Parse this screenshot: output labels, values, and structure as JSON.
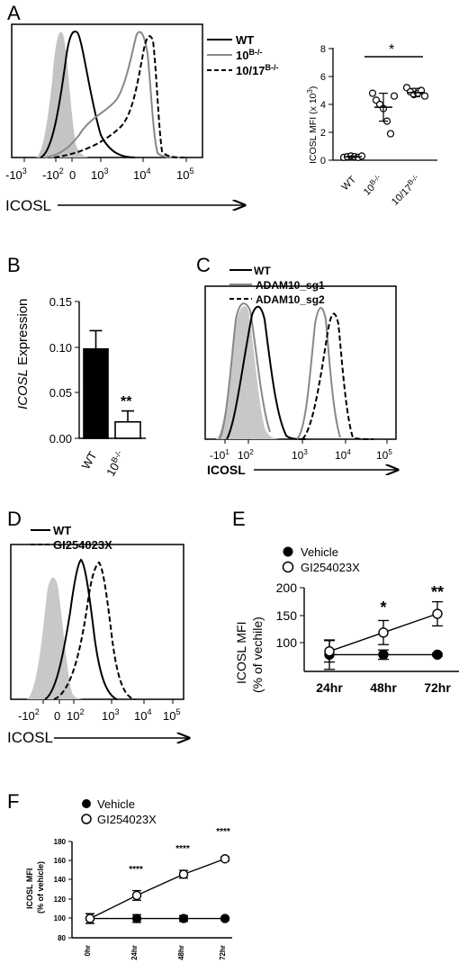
{
  "figure": {
    "panels": {
      "A": {
        "letter": "A",
        "axis_label": "ICOSL",
        "legend": [
          "WT",
          "10",
          "10/17"
        ],
        "legend_sup": [
          "",
          "B-/-",
          "B-/-"
        ],
        "ticks": [
          "-10",
          "-10",
          "0",
          "10",
          "10",
          "10"
        ],
        "tick_exp": [
          "3",
          "2",
          "",
          "3",
          "4",
          "5"
        ]
      },
      "A2": {
        "ylabel": "ICOSL MFI (x 10",
        "ylabel_sup": "3",
        "ylabel_end": ")",
        "yticks": [
          "0",
          "2",
          "4",
          "6",
          "8"
        ],
        "xcats": [
          "WT",
          "10",
          "10/17"
        ],
        "xcats_sup": [
          "",
          "B-/-",
          "B-/-"
        ],
        "sig": "*"
      },
      "B": {
        "letter": "B",
        "ylabel_italic": "ICOSL",
        "ylabel_rest": " Expression",
        "yticks": [
          "0.00",
          "0.05",
          "0.10",
          "0.15"
        ],
        "xcats": [
          "WT",
          "10"
        ],
        "xcats_sup": [
          "",
          "B-/-"
        ],
        "sig": "**"
      },
      "C": {
        "letter": "C",
        "axis_label": "ICOSL",
        "legend": [
          "WT",
          "ADAM10_sg1",
          "ADAM10_sg2"
        ],
        "ticks": [
          "-10",
          "10",
          "10",
          "10",
          "10",
          "10"
        ],
        "tick_exp": [
          "1",
          "2",
          "3",
          "4",
          "5",
          "1"
        ]
      },
      "D": {
        "letter": "D",
        "axis_label": "ICOSL",
        "legend": [
          "WT",
          "GI254023X"
        ],
        "ticks": [
          "-10",
          "0",
          "10",
          "10",
          "10",
          "10"
        ],
        "tick_exp": [
          "2",
          "",
          "2",
          "3",
          "4",
          "5"
        ]
      },
      "E": {
        "letter": "E",
        "ylabel1": "ICOSL MFI",
        "ylabel2": "(% of vechile)",
        "legend": [
          "Vehicle",
          "GI254023X"
        ],
        "yticks": [
          "100",
          "150",
          "200"
        ],
        "xcats": [
          "24hr",
          "48hr",
          "72hr"
        ],
        "sig": [
          "",
          "*",
          "**"
        ]
      },
      "F": {
        "letter": "F",
        "ylabel1": "ICOSL MFI",
        "ylabel2": "(% of vehicle)",
        "legend": [
          "Vehicle",
          "GI254023X"
        ],
        "yticks": [
          "80",
          "100",
          "120",
          "140",
          "160",
          "180"
        ],
        "xcats": [
          "0hr",
          "24hr",
          "48hr",
          "72hr"
        ],
        "sig": [
          "",
          "****",
          "****",
          "****"
        ]
      }
    }
  },
  "chart_data": [
    {
      "type": "line",
      "panel": "A",
      "description_axis": "ICOSL",
      "x_scale": "biexponential",
      "series": [
        {
          "name": "WT",
          "color": "#000000",
          "style": "solid"
        },
        {
          "name": "10B-/-",
          "color": "#888888",
          "style": "solid"
        },
        {
          "name": "10/17B-/-",
          "color": "#000000",
          "style": "dashed"
        }
      ]
    },
    {
      "type": "scatter",
      "panel": "A2",
      "categories": [
        "WT",
        "10B-/-",
        "10/17B-/-"
      ],
      "ylim": [
        0,
        8
      ],
      "points": [
        [
          0.2,
          0.25,
          0.3,
          0.25,
          0.2,
          0.3
        ],
        [
          4.8,
          4.3,
          4.0,
          3.7,
          2.8,
          1.9,
          4.6
        ],
        [
          5.2,
          4.9,
          4.7,
          4.8,
          5.0,
          4.6
        ]
      ],
      "mean": [
        0.25,
        3.8,
        4.85
      ],
      "sd": [
        0.05,
        1.0,
        0.3
      ]
    },
    {
      "type": "bar",
      "panel": "B",
      "categories": [
        "WT",
        "10B-/-"
      ],
      "values": [
        0.098,
        0.018
      ],
      "errors": [
        0.02,
        0.012
      ],
      "ylim": [
        0,
        0.15
      ]
    },
    {
      "type": "line",
      "panel": "C",
      "description_axis": "ICOSL",
      "series": [
        {
          "name": "WT",
          "color": "#000000",
          "style": "solid"
        },
        {
          "name": "ADAM10_sg1",
          "color": "#888888",
          "style": "solid"
        },
        {
          "name": "ADAM10_sg2",
          "color": "#000000",
          "style": "dashed"
        }
      ]
    },
    {
      "type": "line",
      "panel": "D",
      "description_axis": "ICOSL",
      "series": [
        {
          "name": "WT",
          "color": "#000000",
          "style": "solid"
        },
        {
          "name": "GI254023X",
          "color": "#000000",
          "style": "dashed"
        }
      ]
    },
    {
      "type": "line",
      "panel": "E",
      "categories": [
        "24hr",
        "48hr",
        "72hr"
      ],
      "ylim": [
        75,
        200
      ],
      "series": [
        {
          "name": "Vehicle",
          "values": [
            100,
            100,
            100
          ],
          "errors": [
            22,
            7,
            2
          ]
        },
        {
          "name": "GI254023X",
          "values": [
            105,
            133,
            161
          ],
          "errors": [
            16,
            18,
            18
          ]
        }
      ]
    },
    {
      "type": "line",
      "panel": "F",
      "categories": [
        "0hr",
        "24hr",
        "48hr",
        "72hr"
      ],
      "ylim": [
        80,
        180
      ],
      "series": [
        {
          "name": "Vehicle",
          "values": [
            100,
            100,
            100,
            100
          ],
          "errors": [
            5,
            4,
            3,
            1
          ]
        },
        {
          "name": "GI254023X",
          "values": [
            100,
            124,
            146,
            162
          ],
          "errors": [
            5,
            5,
            4,
            2
          ]
        }
      ]
    }
  ]
}
